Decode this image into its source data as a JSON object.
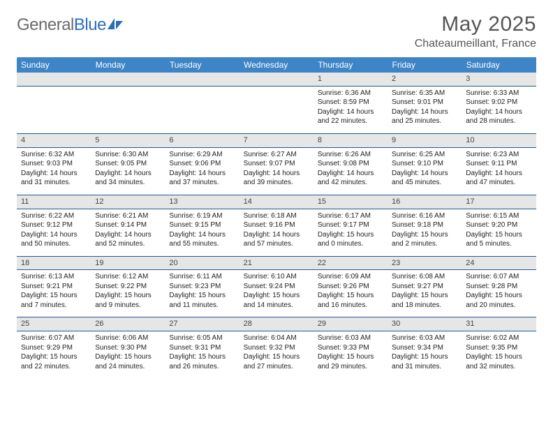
{
  "logo": {
    "text1": "General",
    "text2": "Blue"
  },
  "title": "May 2025",
  "location": "Chateaumeillant, France",
  "colors": {
    "header_bg": "#3d85c6",
    "header_text": "#ffffff",
    "daynum_bg": "#e6e6e6",
    "row_border": "#1e5a94",
    "logo_gray": "#6b6b6b",
    "logo_blue": "#2a6db8"
  },
  "dow": [
    "Sunday",
    "Monday",
    "Tuesday",
    "Wednesday",
    "Thursday",
    "Friday",
    "Saturday"
  ],
  "weeks": [
    [
      null,
      null,
      null,
      null,
      {
        "n": "1",
        "sr": "Sunrise: 6:36 AM",
        "ss": "Sunset: 8:59 PM",
        "dl": "Daylight: 14 hours and 22 minutes."
      },
      {
        "n": "2",
        "sr": "Sunrise: 6:35 AM",
        "ss": "Sunset: 9:01 PM",
        "dl": "Daylight: 14 hours and 25 minutes."
      },
      {
        "n": "3",
        "sr": "Sunrise: 6:33 AM",
        "ss": "Sunset: 9:02 PM",
        "dl": "Daylight: 14 hours and 28 minutes."
      }
    ],
    [
      {
        "n": "4",
        "sr": "Sunrise: 6:32 AM",
        "ss": "Sunset: 9:03 PM",
        "dl": "Daylight: 14 hours and 31 minutes."
      },
      {
        "n": "5",
        "sr": "Sunrise: 6:30 AM",
        "ss": "Sunset: 9:05 PM",
        "dl": "Daylight: 14 hours and 34 minutes."
      },
      {
        "n": "6",
        "sr": "Sunrise: 6:29 AM",
        "ss": "Sunset: 9:06 PM",
        "dl": "Daylight: 14 hours and 37 minutes."
      },
      {
        "n": "7",
        "sr": "Sunrise: 6:27 AM",
        "ss": "Sunset: 9:07 PM",
        "dl": "Daylight: 14 hours and 39 minutes."
      },
      {
        "n": "8",
        "sr": "Sunrise: 6:26 AM",
        "ss": "Sunset: 9:08 PM",
        "dl": "Daylight: 14 hours and 42 minutes."
      },
      {
        "n": "9",
        "sr": "Sunrise: 6:25 AM",
        "ss": "Sunset: 9:10 PM",
        "dl": "Daylight: 14 hours and 45 minutes."
      },
      {
        "n": "10",
        "sr": "Sunrise: 6:23 AM",
        "ss": "Sunset: 9:11 PM",
        "dl": "Daylight: 14 hours and 47 minutes."
      }
    ],
    [
      {
        "n": "11",
        "sr": "Sunrise: 6:22 AM",
        "ss": "Sunset: 9:12 PM",
        "dl": "Daylight: 14 hours and 50 minutes."
      },
      {
        "n": "12",
        "sr": "Sunrise: 6:21 AM",
        "ss": "Sunset: 9:14 PM",
        "dl": "Daylight: 14 hours and 52 minutes."
      },
      {
        "n": "13",
        "sr": "Sunrise: 6:19 AM",
        "ss": "Sunset: 9:15 PM",
        "dl": "Daylight: 14 hours and 55 minutes."
      },
      {
        "n": "14",
        "sr": "Sunrise: 6:18 AM",
        "ss": "Sunset: 9:16 PM",
        "dl": "Daylight: 14 hours and 57 minutes."
      },
      {
        "n": "15",
        "sr": "Sunrise: 6:17 AM",
        "ss": "Sunset: 9:17 PM",
        "dl": "Daylight: 15 hours and 0 minutes."
      },
      {
        "n": "16",
        "sr": "Sunrise: 6:16 AM",
        "ss": "Sunset: 9:18 PM",
        "dl": "Daylight: 15 hours and 2 minutes."
      },
      {
        "n": "17",
        "sr": "Sunrise: 6:15 AM",
        "ss": "Sunset: 9:20 PM",
        "dl": "Daylight: 15 hours and 5 minutes."
      }
    ],
    [
      {
        "n": "18",
        "sr": "Sunrise: 6:13 AM",
        "ss": "Sunset: 9:21 PM",
        "dl": "Daylight: 15 hours and 7 minutes."
      },
      {
        "n": "19",
        "sr": "Sunrise: 6:12 AM",
        "ss": "Sunset: 9:22 PM",
        "dl": "Daylight: 15 hours and 9 minutes."
      },
      {
        "n": "20",
        "sr": "Sunrise: 6:11 AM",
        "ss": "Sunset: 9:23 PM",
        "dl": "Daylight: 15 hours and 11 minutes."
      },
      {
        "n": "21",
        "sr": "Sunrise: 6:10 AM",
        "ss": "Sunset: 9:24 PM",
        "dl": "Daylight: 15 hours and 14 minutes."
      },
      {
        "n": "22",
        "sr": "Sunrise: 6:09 AM",
        "ss": "Sunset: 9:26 PM",
        "dl": "Daylight: 15 hours and 16 minutes."
      },
      {
        "n": "23",
        "sr": "Sunrise: 6:08 AM",
        "ss": "Sunset: 9:27 PM",
        "dl": "Daylight: 15 hours and 18 minutes."
      },
      {
        "n": "24",
        "sr": "Sunrise: 6:07 AM",
        "ss": "Sunset: 9:28 PM",
        "dl": "Daylight: 15 hours and 20 minutes."
      }
    ],
    [
      {
        "n": "25",
        "sr": "Sunrise: 6:07 AM",
        "ss": "Sunset: 9:29 PM",
        "dl": "Daylight: 15 hours and 22 minutes."
      },
      {
        "n": "26",
        "sr": "Sunrise: 6:06 AM",
        "ss": "Sunset: 9:30 PM",
        "dl": "Daylight: 15 hours and 24 minutes."
      },
      {
        "n": "27",
        "sr": "Sunrise: 6:05 AM",
        "ss": "Sunset: 9:31 PM",
        "dl": "Daylight: 15 hours and 26 minutes."
      },
      {
        "n": "28",
        "sr": "Sunrise: 6:04 AM",
        "ss": "Sunset: 9:32 PM",
        "dl": "Daylight: 15 hours and 27 minutes."
      },
      {
        "n": "29",
        "sr": "Sunrise: 6:03 AM",
        "ss": "Sunset: 9:33 PM",
        "dl": "Daylight: 15 hours and 29 minutes."
      },
      {
        "n": "30",
        "sr": "Sunrise: 6:03 AM",
        "ss": "Sunset: 9:34 PM",
        "dl": "Daylight: 15 hours and 31 minutes."
      },
      {
        "n": "31",
        "sr": "Sunrise: 6:02 AM",
        "ss": "Sunset: 9:35 PM",
        "dl": "Daylight: 15 hours and 32 minutes."
      }
    ]
  ]
}
